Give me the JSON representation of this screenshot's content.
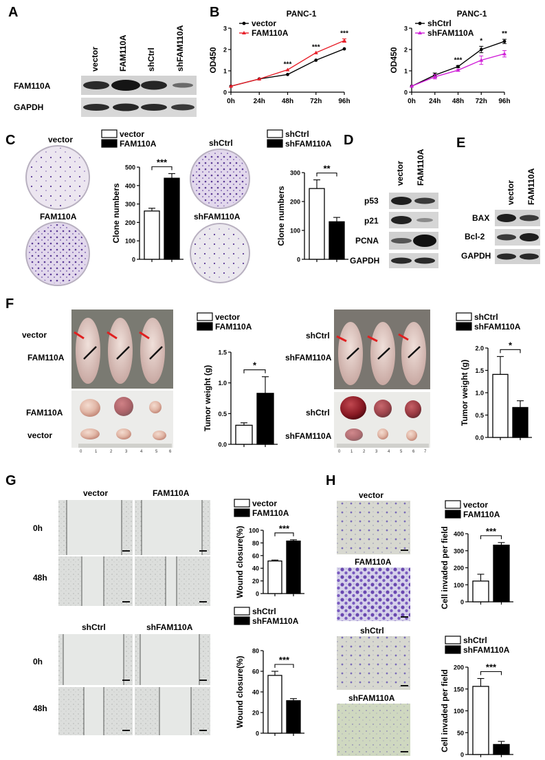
{
  "panels": {
    "A": "A",
    "B": "B",
    "C": "C",
    "D": "D",
    "E": "E",
    "F": "F",
    "G": "G",
    "H": "H"
  },
  "colors": {
    "red": "#e8202a",
    "magenta": "#d020d8",
    "black": "#000000",
    "crystal_violet": "#5a3a9a",
    "arrow_red": "#e02020"
  },
  "blotA": {
    "lanes": [
      "vector",
      "FAM110A",
      "shCtrl",
      "shFAM110A"
    ],
    "rows": [
      "FAM110A",
      "GAPDH"
    ]
  },
  "blotD": {
    "lanes": [
      "vector",
      "FAM110A"
    ],
    "rows": [
      "p53",
      "p21",
      "PCNA",
      "GAPDH"
    ]
  },
  "blotE": {
    "lanes": [
      "vector",
      "FAM110A"
    ],
    "rows": [
      "BAX",
      "Bcl-2",
      "GAPDH"
    ]
  },
  "panelC": {
    "img_labels": [
      "vector",
      "FAM110A",
      "shCtrl",
      "shFAM110A"
    ]
  },
  "panelF": {
    "mice_left": [
      "vector",
      "FAM110A"
    ],
    "tumor_left": [
      "FAM110A",
      "vector"
    ],
    "mice_right": [
      "shCtrl",
      "shFAM110A"
    ],
    "tumor_right": [
      "shCtrl",
      "shFAM110A"
    ],
    "ruler_left": [
      "0",
      "1",
      "2",
      "3",
      "4",
      "5",
      "6"
    ],
    "ruler_right": [
      "0",
      "1",
      "2",
      "3",
      "4",
      "5",
      "6",
      "7"
    ]
  },
  "panelG": {
    "col_top": [
      "vector",
      "FAM110A"
    ],
    "col_bottom": [
      "shCtrl",
      "shFAM110A"
    ],
    "rows": [
      "0h",
      "48h"
    ]
  },
  "panelH": {
    "labels": [
      "vector",
      "FAM110A",
      "shCtrl",
      "shFAM110A"
    ]
  },
  "chart_data": [
    {
      "id": "B1",
      "type": "line",
      "title": "PANC-1",
      "ylabel": "OD450",
      "xlabel": "",
      "x": [
        "0h",
        "24h",
        "48h",
        "72h",
        "96h"
      ],
      "ylim": [
        0,
        3
      ],
      "yticks": [
        "0",
        "1",
        "2",
        "3"
      ],
      "series": [
        {
          "name": "vector",
          "color": "#000000",
          "values": [
            0.28,
            0.62,
            0.83,
            1.5,
            2.03
          ],
          "err": [
            0,
            0,
            0,
            0,
            0
          ]
        },
        {
          "name": "FAM110A",
          "color": "#e8202a",
          "values": [
            0.28,
            0.62,
            1.05,
            1.85,
            2.42
          ],
          "err": [
            0,
            0,
            0,
            0,
            0.08
          ]
        }
      ],
      "annotations": [
        "",
        "",
        "***",
        "***",
        "***"
      ]
    },
    {
      "id": "B2",
      "type": "line",
      "title": "PANC-1",
      "ylabel": "OD450",
      "xlabel": "",
      "x": [
        "0h",
        "24h",
        "48h",
        "72h",
        "96h"
      ],
      "ylim": [
        0,
        3
      ],
      "yticks": [
        "0",
        "1",
        "2",
        "3"
      ],
      "series": [
        {
          "name": "shCtrl",
          "color": "#000000",
          "values": [
            0.28,
            0.8,
            1.2,
            2.0,
            2.38
          ],
          "err": [
            0,
            0.1,
            0.05,
            0.15,
            0.1
          ]
        },
        {
          "name": "shFAM110A",
          "color": "#d020d8",
          "values": [
            0.28,
            0.72,
            1.03,
            1.5,
            1.8
          ],
          "err": [
            0,
            0.1,
            0.05,
            0.2,
            0.15
          ]
        }
      ],
      "annotations": [
        "",
        "",
        "***",
        "*",
        "**"
      ]
    },
    {
      "id": "C1",
      "type": "bar",
      "ylabel": "Clone numbers",
      "categories": [
        "vector",
        "FAM110A"
      ],
      "values": [
        262,
        440
      ],
      "err": [
        15,
        25
      ],
      "ylim": [
        0,
        500
      ],
      "yticks": [
        "0",
        "100",
        "200",
        "300",
        "400",
        "500"
      ],
      "sig": "***"
    },
    {
      "id": "C2",
      "type": "bar",
      "ylabel": "Clone numbers",
      "categories": [
        "shCtrl",
        "shFAM110A"
      ],
      "values": [
        245,
        130
      ],
      "err": [
        30,
        15
      ],
      "ylim": [
        0,
        300
      ],
      "yticks": [
        "0",
        "100",
        "200",
        "300"
      ],
      "sig": "**"
    },
    {
      "id": "F1",
      "type": "bar",
      "ylabel": "Tumor weight (g)",
      "categories": [
        "vector",
        "FAM110A"
      ],
      "values": [
        0.31,
        0.83
      ],
      "err": [
        0.04,
        0.27
      ],
      "ylim": [
        0,
        1.5
      ],
      "yticks": [
        "0.0",
        "0.5",
        "1.0",
        "1.5"
      ],
      "sig": "*"
    },
    {
      "id": "F2",
      "type": "bar",
      "ylabel": "Tumor weight (g)",
      "categories": [
        "shCtrl",
        "shFAM110A"
      ],
      "values": [
        1.41,
        0.67
      ],
      "err": [
        0.4,
        0.15
      ],
      "ylim": [
        0,
        2.0
      ],
      "yticks": [
        "0.0",
        "0.5",
        "1.0",
        "1.5",
        "2.0"
      ],
      "sig": "*"
    },
    {
      "id": "G1",
      "type": "bar",
      "ylabel": "Wound closure(%)",
      "categories": [
        "vector",
        "FAM110A"
      ],
      "values": [
        51.5,
        83
      ],
      "err": [
        1.5,
        2
      ],
      "ylim": [
        0,
        100
      ],
      "yticks": [
        "0",
        "20",
        "40",
        "60",
        "80",
        "100"
      ],
      "sig": "***"
    },
    {
      "id": "G2",
      "type": "bar",
      "ylabel": "Wound closure(%)",
      "categories": [
        "shCtrl",
        "shFAM110A"
      ],
      "values": [
        56,
        31.5
      ],
      "err": [
        4,
        2
      ],
      "ylim": [
        0,
        80
      ],
      "yticks": [
        "0",
        "20",
        "40",
        "60",
        "80"
      ],
      "sig": "***"
    },
    {
      "id": "H1",
      "type": "bar",
      "ylabel": "Cell invaded per field",
      "categories": [
        "vector",
        "FAM110A"
      ],
      "values": [
        122,
        333
      ],
      "err": [
        40,
        15
      ],
      "ylim": [
        0,
        400
      ],
      "yticks": [
        "0",
        "100",
        "200",
        "300",
        "400"
      ],
      "sig": "***"
    },
    {
      "id": "H2",
      "type": "bar",
      "ylabel": "Cell invaded per field",
      "categories": [
        "shCtrl",
        "shFAM110A"
      ],
      "values": [
        156,
        23
      ],
      "err": [
        18,
        7
      ],
      "ylim": [
        0,
        200
      ],
      "yticks": [
        "0",
        "50",
        "100",
        "150",
        "200"
      ],
      "sig": "***"
    }
  ]
}
